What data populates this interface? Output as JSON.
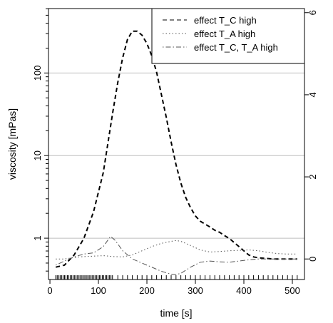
{
  "chart_data": {
    "type": "line",
    "xlabel": "time [s]",
    "ylabel": "viscosity [mPas]",
    "xlim": [
      -3,
      525
    ],
    "ylim_left_log10": [
      -0.5,
      2.78
    ],
    "ylim_right": [
      -0.5,
      6.1
    ],
    "y_scale_left": "log",
    "x_ticks": [
      0,
      100,
      200,
      300,
      400,
      500
    ],
    "x_tick_labels": [
      "0",
      "100",
      "200",
      "300",
      "400",
      "500"
    ],
    "y_left_ticks": [
      1,
      10,
      100
    ],
    "y_left_tick_labels": [
      "1",
      "10",
      "100"
    ],
    "y_right_ticks": [
      0,
      2,
      4,
      6
    ],
    "y_right_tick_labels": [
      "0",
      "2",
      "4",
      "6"
    ],
    "hlines_left": [
      1,
      10,
      100
    ],
    "legend_position": "top-right",
    "legend": [
      {
        "name": "effect T_C high",
        "dash": "dashed"
      },
      {
        "name": "effect T_A high",
        "dash": "dotted"
      },
      {
        "name": "effect T_C, T_A high",
        "dash": "dotdash"
      }
    ],
    "series": [
      {
        "name": "effect T_C high",
        "axis": "right",
        "dash": "dashed",
        "stroke_width": 2,
        "x": [
          12,
          30,
          50,
          70,
          90,
          110,
          130,
          140,
          150,
          160,
          170,
          180,
          190,
          200,
          210,
          220,
          230,
          240,
          250,
          260,
          270,
          280,
          290,
          300,
          310,
          320,
          330,
          340,
          350,
          360,
          370,
          380,
          390,
          400,
          410,
          420,
          430,
          440,
          450,
          460,
          480,
          500,
          510
        ],
        "y": [
          -0.2,
          -0.15,
          0.1,
          0.5,
          1.15,
          2.1,
          3.6,
          4.3,
          4.9,
          5.35,
          5.55,
          5.55,
          5.45,
          5.25,
          4.95,
          4.55,
          4.0,
          3.45,
          2.85,
          2.3,
          1.85,
          1.5,
          1.25,
          1.05,
          0.92,
          0.85,
          0.78,
          0.7,
          0.65,
          0.57,
          0.5,
          0.4,
          0.3,
          0.2,
          0.1,
          0.05,
          0.03,
          0.02,
          0.01,
          0.0,
          0.0,
          0.0,
          0.0
        ]
      },
      {
        "name": "effect T_A high",
        "axis": "right",
        "dash": "dotted",
        "stroke_width": 1,
        "x": [
          12,
          30,
          60,
          90,
          110,
          130,
          150,
          170,
          190,
          210,
          230,
          250,
          260,
          270,
          290,
          310,
          330,
          350,
          370,
          390,
          410,
          430,
          450,
          470,
          490,
          510
        ],
        "y": [
          0.0,
          0.0,
          0.05,
          0.07,
          0.08,
          0.06,
          0.05,
          0.1,
          0.2,
          0.3,
          0.38,
          0.43,
          0.45,
          0.43,
          0.33,
          0.22,
          0.17,
          0.18,
          0.2,
          0.21,
          0.22,
          0.2,
          0.16,
          0.13,
          0.12,
          0.12
        ]
      },
      {
        "name": "effect T_C, T_A high",
        "axis": "right",
        "dash": "dotdash",
        "stroke_width": 1,
        "x": [
          12,
          30,
          50,
          70,
          90,
          110,
          125,
          135,
          150,
          170,
          190,
          210,
          230,
          250,
          260,
          270,
          290,
          310,
          330,
          350,
          370,
          390,
          410,
          430,
          450,
          470,
          490,
          510
        ],
        "y": [
          -0.15,
          -0.05,
          0.05,
          0.12,
          0.15,
          0.3,
          0.55,
          0.45,
          0.2,
          0.0,
          -0.1,
          -0.2,
          -0.3,
          -0.37,
          -0.38,
          -0.35,
          -0.2,
          -0.08,
          -0.05,
          -0.07,
          -0.08,
          -0.05,
          -0.02,
          0.0,
          0.0,
          0.0,
          0.0,
          0.0
        ]
      }
    ],
    "rug": [
      12,
      15,
      18,
      21,
      24,
      27,
      30,
      33,
      36,
      39,
      42,
      45,
      48,
      51,
      54,
      57,
      60,
      63,
      66,
      69,
      72,
      75,
      78,
      81,
      84,
      87,
      90,
      93,
      96,
      99,
      102,
      105,
      108,
      111,
      114,
      117,
      120,
      123,
      126,
      129,
      140,
      150,
      160,
      170,
      180,
      190,
      200,
      210,
      220,
      230,
      240,
      250,
      260,
      270,
      280,
      290,
      300,
      310,
      320,
      330,
      340,
      350,
      360,
      370,
      380,
      390,
      400,
      410,
      420,
      430,
      440,
      450,
      460,
      470,
      480,
      490,
      500,
      510
    ]
  }
}
